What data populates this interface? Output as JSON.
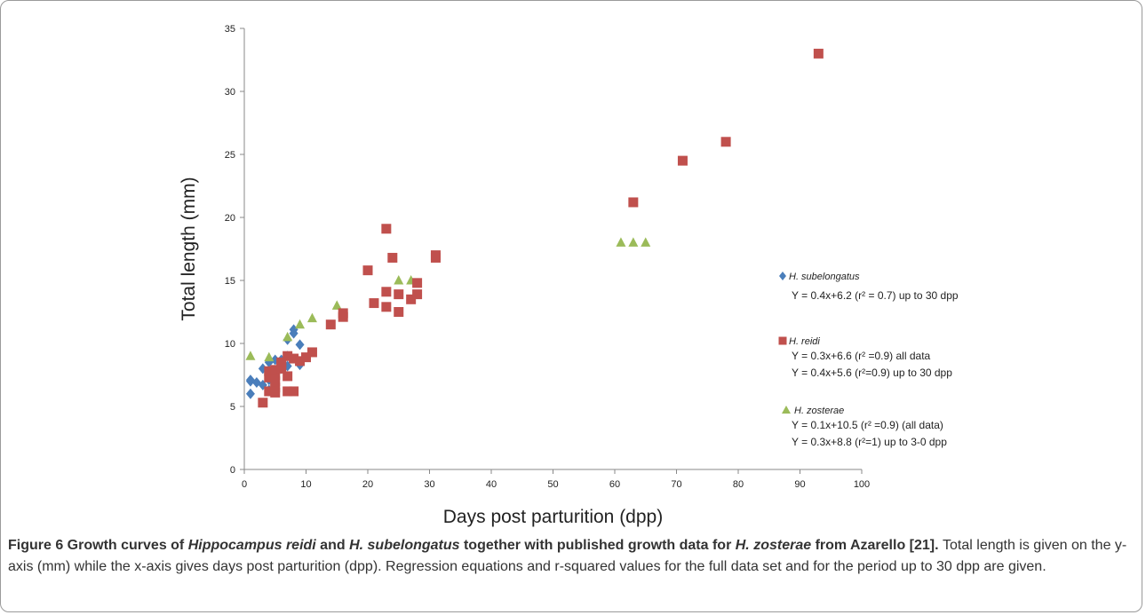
{
  "chart_data": {
    "type": "scatter",
    "xlabel": "Days post parturition (dpp)",
    "ylabel": "Total length (mm)",
    "xlim": [
      0,
      100
    ],
    "ylim": [
      0,
      35
    ],
    "xticks": [
      0,
      10,
      20,
      30,
      40,
      50,
      60,
      70,
      80,
      90,
      100
    ],
    "yticks": [
      0,
      5,
      10,
      15,
      20,
      25,
      30,
      35
    ],
    "grid": false,
    "legend_position": "right",
    "series": [
      {
        "name": "H. subelongatus",
        "marker": "diamond",
        "color": "#4a7ebb",
        "equations": [
          "Y = 0.4x+6.2 (r² = 0.7) up to 30 dpp"
        ],
        "points": [
          [
            1,
            6.0
          ],
          [
            1,
            7.0
          ],
          [
            1,
            7.1
          ],
          [
            2,
            6.9
          ],
          [
            3,
            6.7
          ],
          [
            3,
            8.0
          ],
          [
            4,
            8.5
          ],
          [
            4,
            6.3
          ],
          [
            5,
            8.7
          ],
          [
            6,
            8.7
          ],
          [
            7,
            8.2
          ],
          [
            7,
            10.3
          ],
          [
            8,
            10.8
          ],
          [
            8,
            11.1
          ],
          [
            9,
            8.3
          ],
          [
            9,
            9.9
          ],
          [
            5,
            7.8
          ],
          [
            6,
            8.0
          ],
          [
            4,
            7.1
          ],
          [
            7,
            9.0
          ]
        ]
      },
      {
        "name": "H. reidi",
        "marker": "square",
        "color": "#c0504d",
        "equations": [
          "Y = 0.3x+6.6 (r² =0.9) all data",
          "Y = 0.4x+5.6 (r²=0.9) up to 30 dpp"
        ],
        "points": [
          [
            3,
            5.3
          ],
          [
            4,
            6.2
          ],
          [
            4,
            7.3
          ],
          [
            4,
            7.8
          ],
          [
            5,
            6.1
          ],
          [
            5,
            6.5
          ],
          [
            5,
            7.0
          ],
          [
            5,
            7.5
          ],
          [
            5,
            7.9
          ],
          [
            6,
            8.0
          ],
          [
            6,
            8.3
          ],
          [
            6,
            8.5
          ],
          [
            7,
            6.2
          ],
          [
            7,
            7.4
          ],
          [
            7,
            9.0
          ],
          [
            8,
            6.2
          ],
          [
            8,
            8.8
          ],
          [
            9,
            8.6
          ],
          [
            10,
            8.9
          ],
          [
            11,
            9.3
          ],
          [
            14,
            11.5
          ],
          [
            16,
            12.1
          ],
          [
            16,
            12.4
          ],
          [
            20,
            15.8
          ],
          [
            21,
            13.2
          ],
          [
            23,
            12.9
          ],
          [
            23,
            14.1
          ],
          [
            23,
            19.1
          ],
          [
            24,
            16.8
          ],
          [
            25,
            12.5
          ],
          [
            25,
            13.9
          ],
          [
            27,
            13.5
          ],
          [
            28,
            13.9
          ],
          [
            28,
            14.8
          ],
          [
            31,
            16.8
          ],
          [
            31,
            17.0
          ],
          [
            63,
            21.2
          ],
          [
            71,
            24.5
          ],
          [
            78,
            26.0
          ],
          [
            93,
            33.0
          ]
        ]
      },
      {
        "name": "H. zosterae",
        "marker": "triangle",
        "color": "#9bbb59",
        "equations": [
          "Y = 0.1x+10.5 (r² =0.9) (all data)",
          "Y = 0.3x+8.8 (r²=1) up to 3-0 dpp"
        ],
        "points": [
          [
            1,
            9.0
          ],
          [
            4,
            8.9
          ],
          [
            7,
            10.5
          ],
          [
            9,
            11.5
          ],
          [
            11,
            12.0
          ],
          [
            15,
            13.0
          ],
          [
            25,
            15.0
          ],
          [
            27,
            15.0
          ],
          [
            61,
            18.0
          ],
          [
            63,
            18.0
          ],
          [
            65,
            18.0
          ]
        ]
      }
    ]
  },
  "caption": {
    "title_parts": [
      {
        "text": "Figure 6 Growth curves of ",
        "italic": false
      },
      {
        "text": "Hippocampus reidi",
        "italic": true
      },
      {
        "text": " and ",
        "italic": false
      },
      {
        "text": "H. subelongatus",
        "italic": true
      },
      {
        "text": " together with published growth data for ",
        "italic": false
      },
      {
        "text": "H. zosterae",
        "italic": true
      },
      {
        "text": " from Azarello [21].",
        "italic": false
      }
    ],
    "body": "Total length is given on the y-axis (mm) while the x-axis gives days post parturition (dpp). Regression equations and r-squared values for the full data set and for the period up to 30 dpp are given."
  }
}
